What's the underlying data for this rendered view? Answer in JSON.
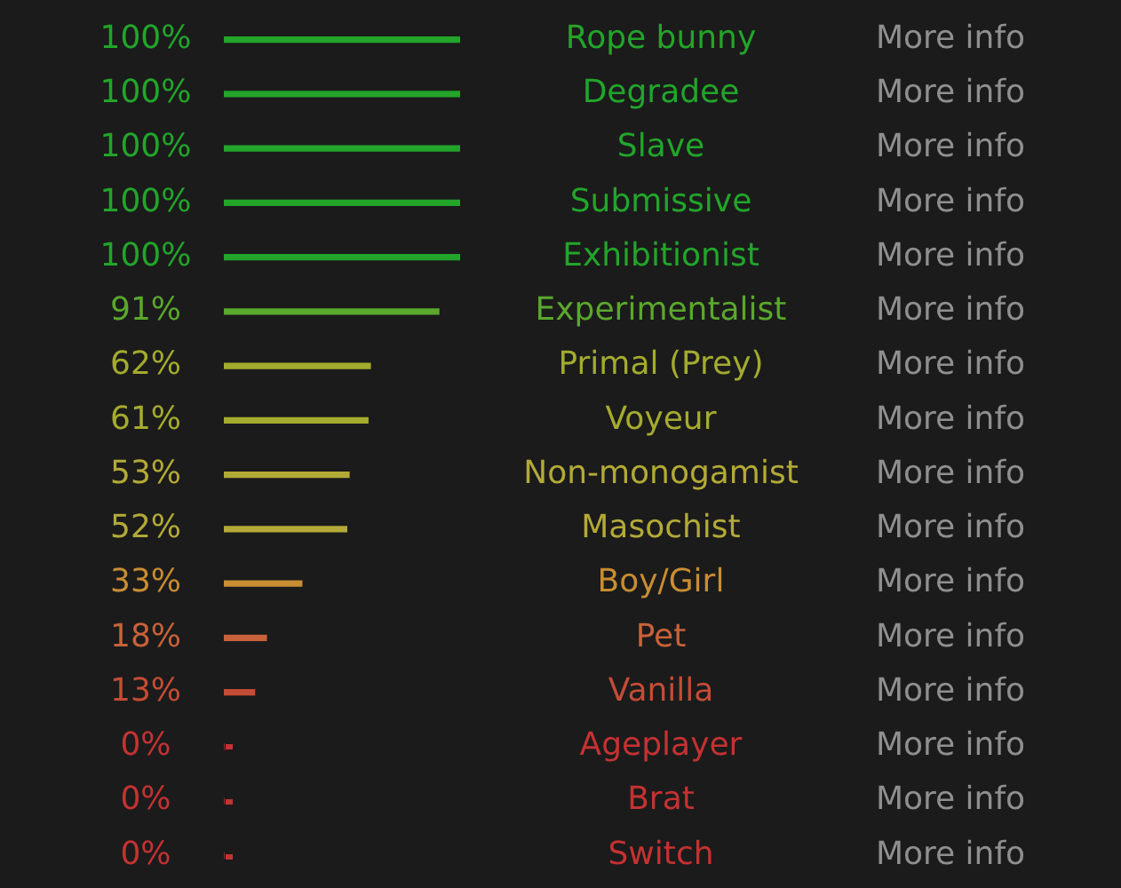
{
  "chart_data": {
    "type": "bar",
    "orientation": "horizontal",
    "categories": [
      "Rope bunny",
      "Degradee",
      "Slave",
      "Submissive",
      "Exhibitionist",
      "Experimentalist",
      "Primal (Prey)",
      "Voyeur",
      "Non-monogamist",
      "Masochist",
      "Boy/Girl",
      "Pet",
      "Vanilla",
      "Ageplayer",
      "Brat",
      "Switch"
    ],
    "values": [
      100,
      100,
      100,
      100,
      100,
      91,
      62,
      61,
      53,
      52,
      33,
      18,
      13,
      0,
      0,
      0
    ],
    "value_labels": [
      "100%",
      "100%",
      "100%",
      "100%",
      "100%",
      "91%",
      "62%",
      "61%",
      "53%",
      "52%",
      "33%",
      "18%",
      "13%",
      "0%",
      "0%",
      "0%"
    ],
    "colors": [
      "#22a52a",
      "#22a52a",
      "#22a52a",
      "#22a52a",
      "#22a52a",
      "#5aa82c",
      "#a3ab2e",
      "#a5ab2e",
      "#b3aa36",
      "#b3aa38",
      "#c98d32",
      "#c8623a",
      "#c54c36",
      "#c53232",
      "#c53232",
      "#c53232"
    ],
    "xlim": [
      0,
      100
    ],
    "annotations": [
      "More info",
      "More info",
      "More info",
      "More info",
      "More info",
      "More info",
      "More info",
      "More info",
      "More info",
      "More info",
      "More info",
      "More info",
      "More info",
      "More info",
      "More info",
      "More info"
    ],
    "tick_labels": false,
    "legend": false
  }
}
